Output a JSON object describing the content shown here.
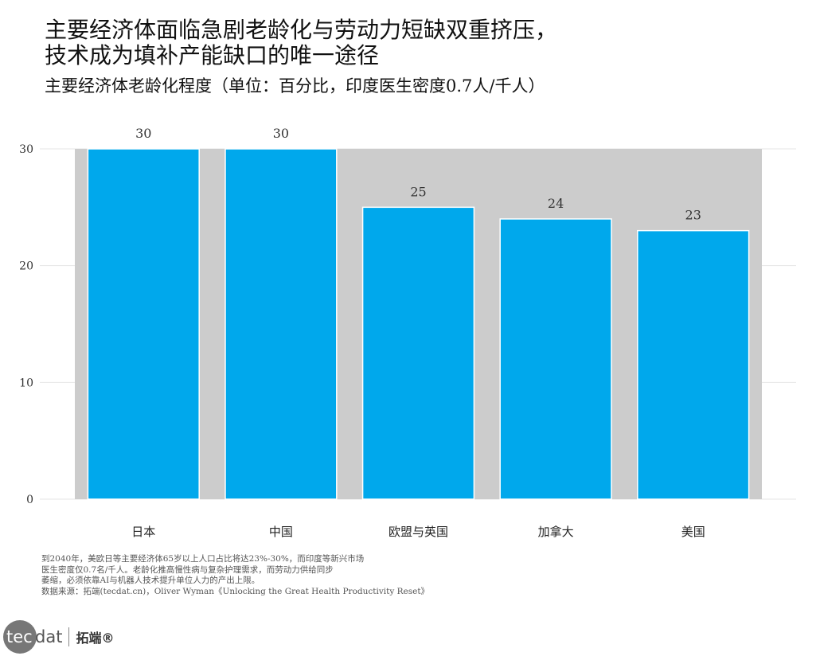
{
  "title_lines": [
    "主要经济体面临急剧老龄化与劳动力短缺双重挤压，",
    "技术成为填补产能缺口的唯一途径"
  ],
  "subtitle": "主要经济体老龄化程度（单位：百分比，印度医生密度0.7人/千人）",
  "notes": [
    "到2040年，美欧日等主要经济体65岁以上人口占比将达23%-30%，而印度等新兴市场",
    "医生密度仅0.7名/千人。老龄化推高慢性病与复杂护理需求，而劳动力供给同步",
    "萎缩，必须依靠AI与机器人技术提升单位人力的产出上限。",
    "数据来源：拓端(tecdat.cn)，Oliver Wyman《Unlocking the Great Health Productivity Reset》"
  ],
  "logo": {
    "circle_text": "tec",
    "rest_text": "dat",
    "cn_text": "拓端®"
  },
  "colors": {
    "bar": "#00a8ec",
    "panel": "#cccccc",
    "grid": "#e6e6e6"
  },
  "chart_data": {
    "type": "bar",
    "categories": [
      "日本",
      "中国",
      "欧盟与英国",
      "加拿大",
      "美国"
    ],
    "values": [
      30,
      30,
      25,
      24,
      23
    ],
    "data_labels": [
      "30",
      "30",
      "25",
      "24",
      "23"
    ],
    "yticks": [
      "0",
      "10",
      "20",
      "30"
    ],
    "ylim": [
      0,
      30
    ],
    "grid": true,
    "xlabel": "",
    "ylabel": ""
  }
}
